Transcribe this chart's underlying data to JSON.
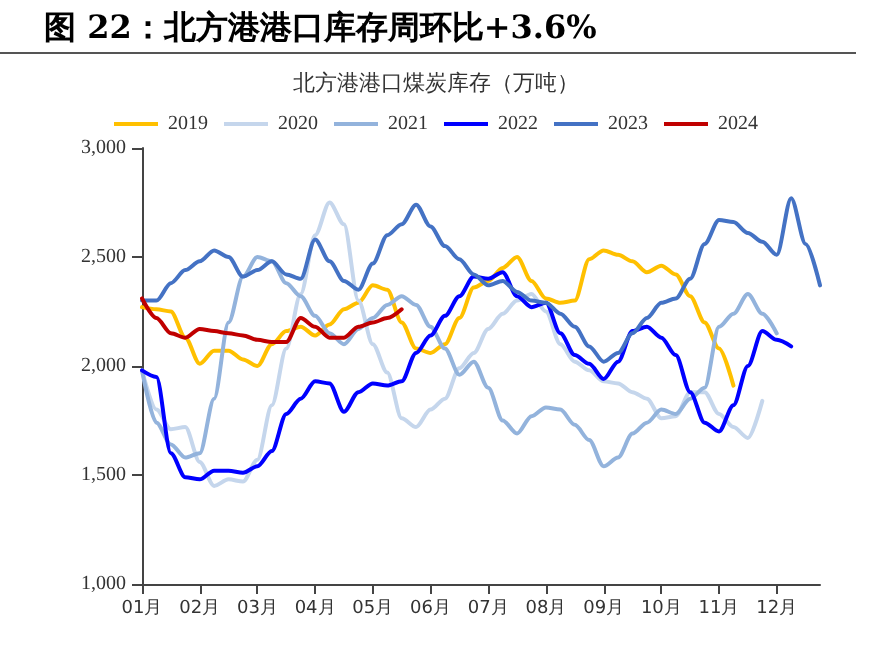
{
  "chart_data": {
    "type": "line",
    "title": "图 22：北方港港口库存周环比+3.6%",
    "subtitle": "北方港港口煤炭库存（万吨）",
    "categories": [
      "01月",
      null,
      null,
      null,
      "02月",
      null,
      null,
      null,
      "03月",
      null,
      null,
      null,
      "04月",
      null,
      null,
      null,
      "05月",
      null,
      null,
      null,
      "06月",
      null,
      null,
      null,
      "07月",
      null,
      null,
      null,
      "08月",
      null,
      null,
      null,
      "09月",
      null,
      null,
      null,
      "10月",
      null,
      null,
      null,
      "11月",
      null,
      null,
      null,
      "12月",
      null,
      null,
      null
    ],
    "series": [
      {
        "name": "2019",
        "color": "#ffc000",
        "values": [
          2270,
          2260,
          2250,
          2130,
          2010,
          2070,
          2070,
          2030,
          2000,
          2100,
          2160,
          2180,
          2140,
          2190,
          2260,
          2290,
          2370,
          2350,
          2200,
          2080,
          2060,
          2100,
          2220,
          2360,
          2390,
          2450,
          2500,
          2390,
          2310,
          2290,
          2300,
          2490,
          2530,
          2510,
          2480,
          2430,
          2460,
          2420,
          2320,
          2200,
          2080,
          1910,
          null,
          null,
          null,
          null,
          null,
          null
        ]
      },
      {
        "name": "2020",
        "color": "#c5d6ec",
        "values": [
          1980,
          1800,
          1710,
          1720,
          1560,
          1450,
          1480,
          1470,
          1570,
          1820,
          2080,
          2330,
          2600,
          2750,
          2650,
          2300,
          2100,
          1970,
          1760,
          1720,
          1800,
          1850,
          1990,
          2060,
          2170,
          2240,
          2300,
          2330,
          2250,
          2100,
          2020,
          1980,
          1930,
          1920,
          1880,
          1850,
          1760,
          1770,
          1880,
          1880,
          1780,
          1720,
          1670,
          1840,
          null,
          null,
          null,
          null
        ]
      },
      {
        "name": "2021",
        "color": "#93b3dc",
        "values": [
          1980,
          1740,
          1640,
          1580,
          1600,
          1850,
          2200,
          2410,
          2500,
          2480,
          2380,
          2320,
          2230,
          2150,
          2100,
          2170,
          2220,
          2280,
          2320,
          2280,
          2180,
          2080,
          1960,
          2020,
          1900,
          1750,
          1690,
          1770,
          1810,
          1800,
          1730,
          1660,
          1540,
          1580,
          1690,
          1740,
          1800,
          1780,
          1850,
          1900,
          2180,
          2240,
          2330,
          2240,
          2150,
          null,
          null,
          null
        ]
      },
      {
        "name": "2022",
        "color": "#0000ff",
        "values": [
          1980,
          1950,
          1600,
          1490,
          1480,
          1520,
          1520,
          1510,
          1540,
          1610,
          1780,
          1850,
          1930,
          1920,
          1790,
          1880,
          1920,
          1910,
          1930,
          2060,
          2140,
          2230,
          2320,
          2410,
          2400,
          2430,
          2320,
          2270,
          2290,
          2150,
          2050,
          2010,
          1940,
          2020,
          2160,
          2180,
          2130,
          2050,
          1880,
          1740,
          1700,
          1820,
          2000,
          2160,
          2120,
          2090,
          null,
          null
        ]
      },
      {
        "name": "2023",
        "color": "#4472c4",
        "values": [
          2300,
          2300,
          2380,
          2440,
          2480,
          2530,
          2500,
          2410,
          2440,
          2480,
          2420,
          2400,
          2580,
          2480,
          2390,
          2350,
          2470,
          2600,
          2650,
          2740,
          2640,
          2550,
          2490,
          2420,
          2370,
          2390,
          2340,
          2300,
          2290,
          2240,
          2180,
          2090,
          2020,
          2060,
          2150,
          2220,
          2290,
          2310,
          2400,
          2560,
          2670,
          2660,
          2610,
          2570,
          2510,
          2770,
          2560,
          2370
        ]
      },
      {
        "name": "2024",
        "color": "#c00000",
        "values": [
          2310,
          2220,
          2150,
          2130,
          2170,
          2160,
          2150,
          2140,
          2120,
          2110,
          2110,
          2220,
          2180,
          2130,
          2130,
          2180,
          2200,
          2220,
          2260,
          null,
          null,
          null,
          null,
          null,
          null,
          null,
          null,
          null,
          null,
          null,
          null,
          null,
          null,
          null,
          null,
          null,
          null,
          null,
          null,
          null,
          null,
          null,
          null,
          null,
          null,
          null,
          null,
          null
        ]
      }
    ],
    "ylim": [
      1000,
      3000
    ],
    "yticks": [
      {
        "value": 1000,
        "label": "1,000"
      },
      {
        "value": 1500,
        "label": "1,500"
      },
      {
        "value": 2000,
        "label": "2,000"
      },
      {
        "value": 2500,
        "label": "2,500"
      },
      {
        "value": 3000,
        "label": "3,000"
      }
    ],
    "grid": false,
    "legend": "top",
    "marker": "none",
    "line_style": "solid"
  }
}
